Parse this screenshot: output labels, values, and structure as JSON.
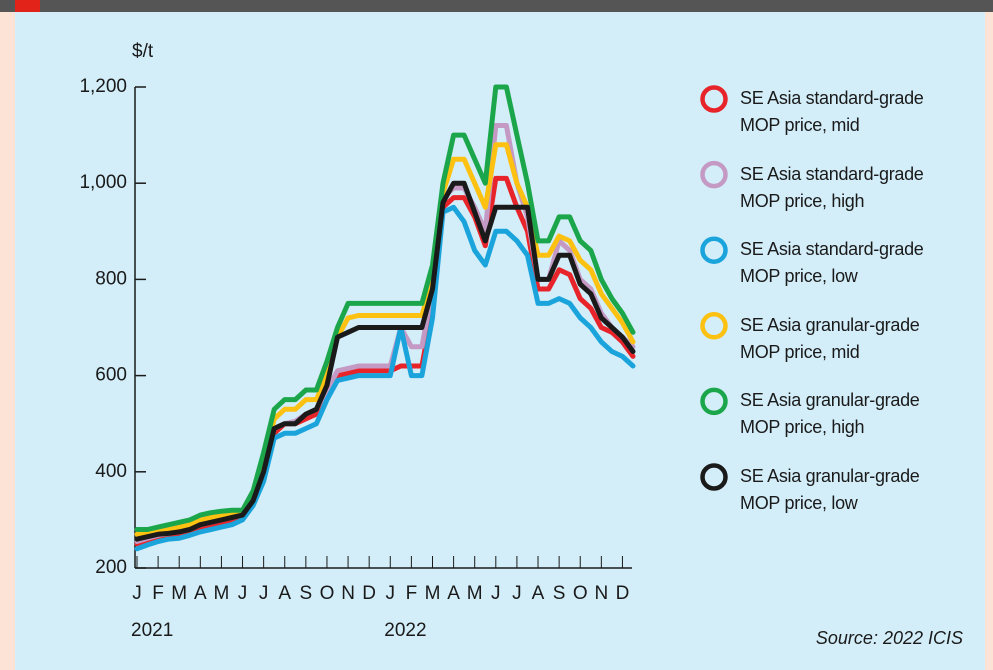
{
  "chart_data": {
    "type": "line",
    "unit_label": "$/t",
    "source": "Source: 2022 ICIS",
    "x": [
      0,
      0.5,
      1,
      1.5,
      2,
      2.5,
      3,
      3.5,
      4,
      4.5,
      5,
      5.5,
      6,
      6.5,
      7,
      7.5,
      8,
      8.5,
      9,
      9.5,
      10,
      10.5,
      11,
      11.5,
      12,
      12.5,
      13,
      13.5,
      14,
      14.5,
      15,
      15.5,
      16,
      16.5,
      17,
      17.5,
      18,
      18.5,
      19,
      19.5,
      20,
      20.5,
      21,
      21.5,
      22,
      22.5,
      23,
      23.5
    ],
    "xlim": [
      0,
      23.5
    ],
    "xticks": [
      {
        "value": 0,
        "label": "J"
      },
      {
        "value": 1,
        "label": "F"
      },
      {
        "value": 2,
        "label": "M"
      },
      {
        "value": 3,
        "label": "A"
      },
      {
        "value": 4,
        "label": "M"
      },
      {
        "value": 5,
        "label": "J"
      },
      {
        "value": 6,
        "label": "J"
      },
      {
        "value": 7,
        "label": "A"
      },
      {
        "value": 8,
        "label": "S"
      },
      {
        "value": 9,
        "label": "O"
      },
      {
        "value": 10,
        "label": "N"
      },
      {
        "value": 11,
        "label": "D"
      },
      {
        "value": 12,
        "label": "J"
      },
      {
        "value": 13,
        "label": "F"
      },
      {
        "value": 14,
        "label": "M"
      },
      {
        "value": 15,
        "label": "A"
      },
      {
        "value": 16,
        "label": "M"
      },
      {
        "value": 17,
        "label": "J"
      },
      {
        "value": 18,
        "label": "J"
      },
      {
        "value": 19,
        "label": "A"
      },
      {
        "value": 20,
        "label": "S"
      },
      {
        "value": 21,
        "label": "O"
      },
      {
        "value": 22,
        "label": "N"
      },
      {
        "value": 23,
        "label": "D"
      }
    ],
    "year_labels": [
      {
        "value": 0,
        "label": "2021"
      },
      {
        "value": 12,
        "label": "2022"
      }
    ],
    "ylim": [
      200,
      1200
    ],
    "yticks": [
      200,
      400,
      600,
      800,
      {
        "value": 1000,
        "label": "1,000"
      },
      {
        "value": 1200,
        "label": "1,200"
      }
    ],
    "series": [
      {
        "name": "SE Asia standard-grade MOP price, mid",
        "color": "#e8242b",
        "values": [
          250,
          258,
          265,
          268,
          270,
          275,
          285,
          290,
          295,
          300,
          305,
          335,
          390,
          480,
          500,
          500,
          510,
          520,
          560,
          600,
          605,
          610,
          610,
          610,
          610,
          620,
          620,
          620,
          740,
          950,
          970,
          970,
          930,
          870,
          1010,
          1010,
          950,
          900,
          780,
          780,
          820,
          810,
          760,
          740,
          700,
          690,
          670,
          640
        ]
      },
      {
        "name": "SE Asia standard-grade MOP price, high",
        "color": "#c49ac4",
        "values": [
          255,
          262,
          268,
          272,
          275,
          280,
          290,
          295,
          300,
          305,
          310,
          345,
          400,
          490,
          500,
          505,
          520,
          530,
          570,
          610,
          615,
          620,
          620,
          620,
          620,
          700,
          660,
          660,
          780,
          970,
          990,
          990,
          950,
          900,
          1120,
          1120,
          1000,
          930,
          800,
          800,
          880,
          860,
          800,
          780,
          730,
          700,
          680,
          660
        ]
      },
      {
        "name": "SE Asia standard-grade MOP price, low",
        "color": "#1ba4dc",
        "values": [
          240,
          248,
          255,
          260,
          262,
          268,
          275,
          280,
          285,
          290,
          300,
          330,
          380,
          470,
          480,
          480,
          490,
          500,
          550,
          590,
          595,
          600,
          600,
          600,
          600,
          700,
          600,
          600,
          720,
          940,
          950,
          920,
          860,
          830,
          900,
          900,
          880,
          850,
          750,
          750,
          760,
          750,
          720,
          700,
          670,
          650,
          640,
          620
        ]
      },
      {
        "name": "SE Asia granular-grade MOP price, mid",
        "color": "#fcc111",
        "values": [
          270,
          270,
          275,
          280,
          285,
          290,
          300,
          305,
          310,
          312,
          315,
          350,
          420,
          510,
          530,
          530,
          550,
          550,
          600,
          680,
          720,
          725,
          725,
          725,
          725,
          725,
          725,
          725,
          800,
          980,
          1050,
          1050,
          1000,
          950,
          1080,
          1080,
          1000,
          950,
          850,
          850,
          890,
          880,
          840,
          820,
          770,
          740,
          710,
          670
        ]
      },
      {
        "name": "SE Asia granular-grade MOP price, high",
        "color": "#1ca64b",
        "values": [
          280,
          280,
          285,
          290,
          295,
          300,
          310,
          315,
          318,
          320,
          320,
          360,
          440,
          530,
          550,
          550,
          570,
          570,
          630,
          700,
          750,
          750,
          750,
          750,
          750,
          750,
          750,
          750,
          830,
          1000,
          1100,
          1100,
          1050,
          1000,
          1200,
          1200,
          1100,
          1000,
          880,
          880,
          930,
          930,
          880,
          860,
          800,
          760,
          730,
          690
        ]
      },
      {
        "name": "SE Asia granular-grade MOP price, low",
        "color": "#1a1a1a",
        "values": [
          260,
          265,
          270,
          272,
          275,
          280,
          290,
          295,
          300,
          305,
          310,
          340,
          400,
          490,
          500,
          500,
          520,
          530,
          580,
          680,
          690,
          700,
          700,
          700,
          700,
          700,
          700,
          700,
          780,
          960,
          1000,
          1000,
          940,
          880,
          950,
          950,
          950,
          950,
          800,
          800,
          850,
          850,
          790,
          770,
          720,
          700,
          680,
          650
        ]
      }
    ]
  }
}
